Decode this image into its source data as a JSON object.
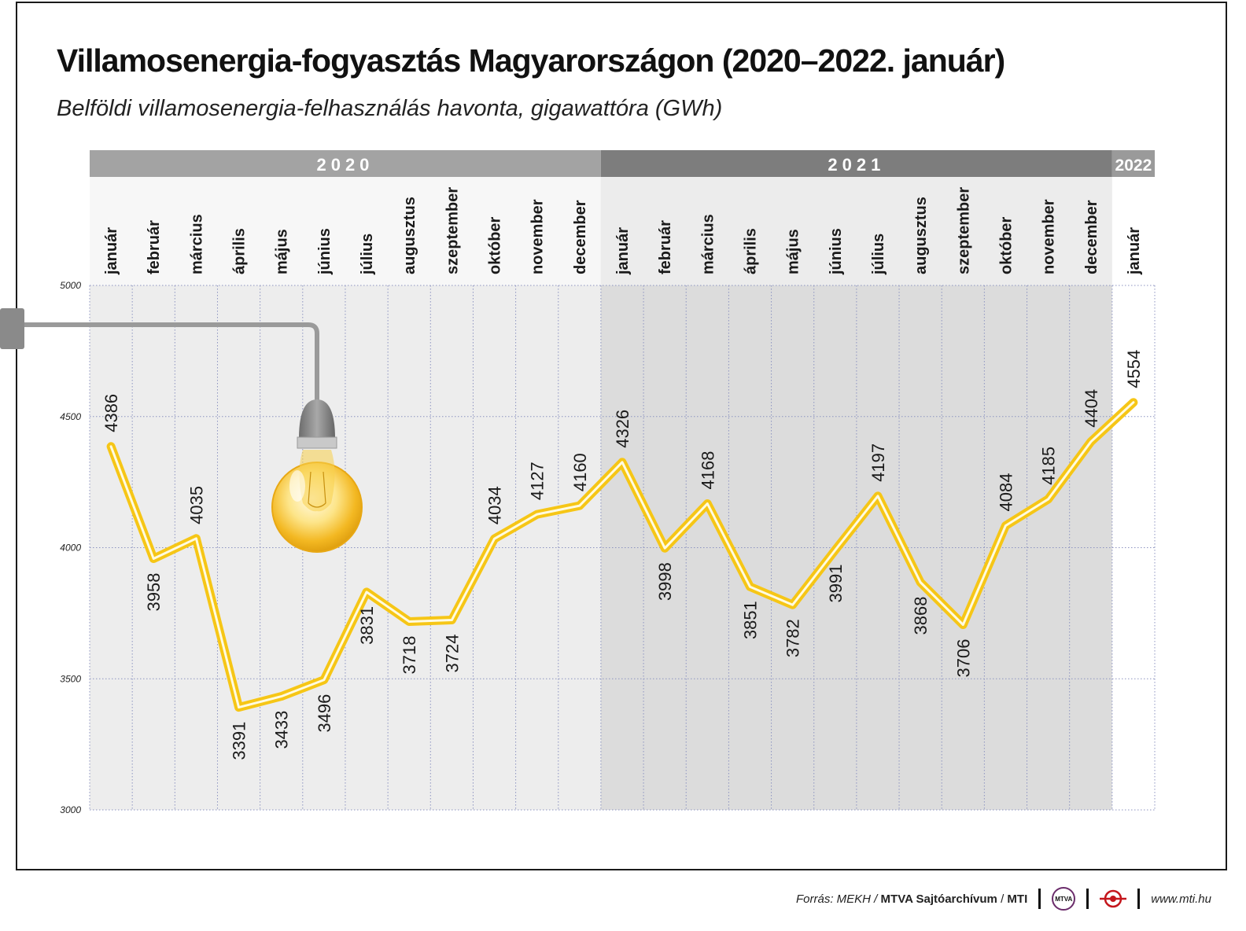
{
  "title": "Villamosenergia-fogyasztás Magyarországon (2020–2022. január)",
  "subtitle": "Belföldi villamosenergia-felhasználás havonta, gigawattóra (GWh)",
  "footer": {
    "source_label": "Forrás: MEKH /",
    "source_bold": "MTVA Sajtóarchívum",
    "source_sep": "/",
    "source_mti": "MTI",
    "logo_mtva": "MTVA",
    "url": "www.mti.hu"
  },
  "colors": {
    "line": "#f6c616",
    "year_2020": "#a3a3a3",
    "year_2021": "#7d7d7d",
    "year_2022": "#9a9a9a"
  },
  "icons": [
    "light-bulb-icon",
    "mtva-logo-icon",
    "mti-logo-icon"
  ],
  "chart_data": {
    "type": "line",
    "title": "Villamosenergia-fogyasztás Magyarországon (2020–2022. január)",
    "subtitle": "Belföldi villamosenergia-felhasználás havonta, gigawattóra (GWh)",
    "ylim": [
      3000,
      5000
    ],
    "yticks": [
      3000,
      3500,
      4000,
      4500,
      5000
    ],
    "grid": true,
    "years": [
      {
        "label": "2020",
        "months": 12
      },
      {
        "label": "2021",
        "months": 12
      },
      {
        "label": "2022",
        "months": 1
      }
    ],
    "categories": [
      "január",
      "február",
      "március",
      "április",
      "május",
      "június",
      "július",
      "augusztus",
      "szeptember",
      "október",
      "november",
      "december",
      "január",
      "február",
      "március",
      "április",
      "május",
      "június",
      "július",
      "augusztus",
      "szeptember",
      "október",
      "november",
      "december",
      "január"
    ],
    "values": [
      4386,
      3958,
      4035,
      3391,
      3433,
      3496,
      3831,
      3718,
      3724,
      4034,
      4127,
      4160,
      4326,
      3998,
      4168,
      3851,
      3782,
      3991,
      4197,
      3868,
      3706,
      4084,
      4185,
      4404,
      4554
    ],
    "label_positions": [
      "above",
      "below",
      "above",
      "below",
      "below",
      "below",
      "below",
      "below",
      "below",
      "above",
      "above",
      "above",
      "above",
      "below",
      "above",
      "below",
      "below",
      "below",
      "above",
      "below",
      "below",
      "above",
      "above",
      "above",
      "above"
    ]
  }
}
